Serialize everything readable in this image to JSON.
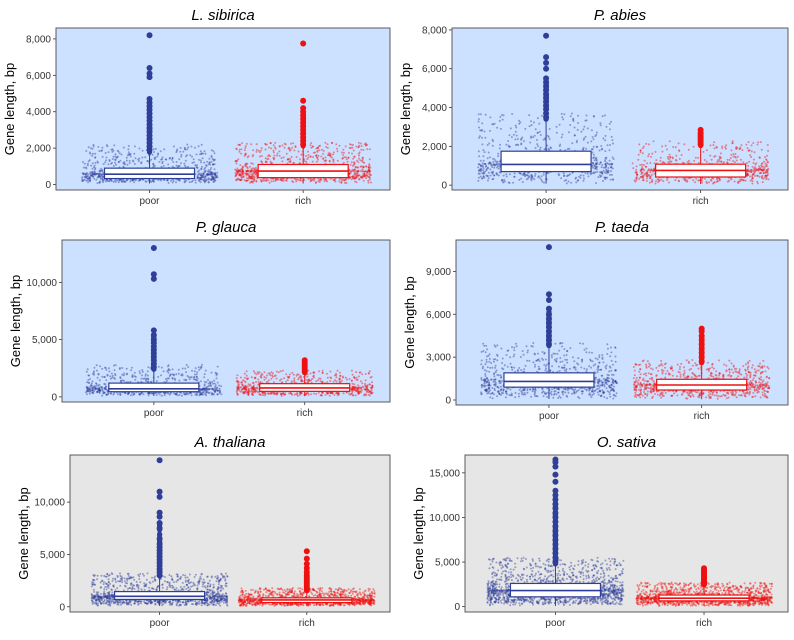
{
  "figure": {
    "background_pine": "#cce0ff",
    "background_other": "#e6e6e6",
    "poor_color": "#2e3f99",
    "rich_color": "#ee1111"
  },
  "chart_data": [
    {
      "type": "box",
      "title": "L. sibirica",
      "ylabel": "Gene length, bp",
      "categories": [
        "poor",
        "rich"
      ],
      "ylim": [
        -300,
        8600
      ],
      "yticks": [
        0,
        2000,
        4000,
        6000,
        8000
      ],
      "ytick_labels": [
        "0",
        "2,000",
        "4,000",
        "6,000",
        "8,000"
      ],
      "background": "pine",
      "series": [
        {
          "category": "poor",
          "q1": 330,
          "median": 570,
          "q3": 900,
          "whisker_low": 60,
          "whisker_high": 1750,
          "n_points": 900,
          "outlier_max": 2200,
          "outliers": [
            1900,
            2100,
            2300,
            2500,
            2700,
            2900,
            3100,
            3300,
            3500,
            3700,
            3900,
            4100,
            4300,
            4500,
            4700,
            5900,
            6100,
            6400,
            8200
          ]
        },
        {
          "category": "rich",
          "q1": 380,
          "median": 740,
          "q3": 1100,
          "whisker_low": 60,
          "whisker_high": 2100,
          "n_points": 1100,
          "outlier_max": 2300,
          "outliers": [
            2200,
            2400,
            2600,
            2800,
            3000,
            3200,
            3400,
            3600,
            3800,
            4000,
            4200,
            4600,
            7750
          ]
        }
      ]
    },
    {
      "type": "box",
      "title": "P. abies",
      "ylabel": "Gene length, bp",
      "categories": [
        "poor",
        "rich"
      ],
      "ylim": [
        -250,
        8100
      ],
      "yticks": [
        0,
        2000,
        4000,
        6000,
        8000
      ],
      "ytick_labels": [
        "0",
        "2,000",
        "4,000",
        "6,000",
        "8,000"
      ],
      "background": "pine",
      "series": [
        {
          "category": "poor",
          "q1": 700,
          "median": 1070,
          "q3": 1750,
          "whisker_low": 80,
          "whisker_high": 3400,
          "n_points": 800,
          "outlier_max": 3700,
          "outliers": [
            3500,
            3700,
            3900,
            4100,
            4300,
            4500,
            4700,
            4900,
            5100,
            5300,
            5500,
            6000,
            6300,
            6600,
            7700
          ]
        },
        {
          "category": "rich",
          "q1": 420,
          "median": 760,
          "q3": 1080,
          "whisker_low": 60,
          "whisker_high": 2050,
          "n_points": 700,
          "outlier_max": 2300,
          "outliers": [
            2100,
            2200,
            2300,
            2400,
            2500,
            2600,
            2700,
            2850
          ]
        }
      ]
    },
    {
      "type": "box",
      "title": "P. glauca",
      "ylabel": "Gene length, bp",
      "categories": [
        "poor",
        "rich"
      ],
      "ylim": [
        -450,
        13700
      ],
      "yticks": [
        0,
        5000,
        10000
      ],
      "ytick_labels": [
        "0",
        "5,000",
        "10,000"
      ],
      "background": "pine",
      "series": [
        {
          "category": "poor",
          "q1": 450,
          "median": 700,
          "q3": 1200,
          "whisker_low": 80,
          "whisker_high": 2400,
          "n_points": 800,
          "outlier_max": 2800,
          "outliers": [
            2600,
            2900,
            3200,
            3500,
            3800,
            4100,
            4400,
            4700,
            5000,
            5400,
            5800,
            10300,
            10700,
            13000
          ]
        },
        {
          "category": "rich",
          "q1": 480,
          "median": 780,
          "q3": 1150,
          "whisker_low": 60,
          "whisker_high": 2100,
          "n_points": 900,
          "outlier_max": 2300,
          "outliers": [
            2200,
            2400,
            2600,
            2800,
            3000,
            3200
          ]
        }
      ]
    },
    {
      "type": "box",
      "title": "P. taeda",
      "ylabel": "Gene length, bp",
      "categories": [
        "poor",
        "rich"
      ],
      "ylim": [
        -350,
        11200
      ],
      "yticks": [
        0,
        3000,
        6000,
        9000
      ],
      "ytick_labels": [
        "0",
        "3,000",
        "6,000",
        "9,000"
      ],
      "background": "pine",
      "series": [
        {
          "category": "poor",
          "q1": 900,
          "median": 1300,
          "q3": 1900,
          "whisker_low": 80,
          "whisker_high": 3800,
          "n_points": 900,
          "outlier_max": 4000,
          "outliers": [
            3900,
            4200,
            4500,
            4800,
            5100,
            5400,
            5700,
            6000,
            6400,
            7000,
            7400,
            10700
          ]
        },
        {
          "category": "rich",
          "q1": 700,
          "median": 1050,
          "q3": 1450,
          "whisker_low": 60,
          "whisker_high": 2600,
          "n_points": 900,
          "outlier_max": 2800,
          "outliers": [
            2700,
            3000,
            3300,
            3600,
            3900,
            4200,
            4500,
            4800,
            5000
          ]
        }
      ]
    },
    {
      "type": "box",
      "title": "A. thaliana",
      "ylabel": "Gene length, bp",
      "categories": [
        "poor",
        "rich"
      ],
      "ylim": [
        -500,
        14500
      ],
      "yticks": [
        0,
        5000,
        10000
      ],
      "ytick_labels": [
        "0",
        "5,000",
        "10,000"
      ],
      "background": "other",
      "series": [
        {
          "category": "poor",
          "q1": 700,
          "median": 1000,
          "q3": 1450,
          "whisker_low": 80,
          "whisker_high": 2900,
          "n_points": 1300,
          "outlier_max": 3200,
          "outliers": [
            3000,
            3300,
            3600,
            3900,
            4200,
            4500,
            4800,
            5100,
            5400,
            5700,
            6000,
            6500,
            7500,
            8000,
            8600,
            9000,
            10500,
            11000,
            14000
          ]
        },
        {
          "category": "rich",
          "q1": 400,
          "median": 650,
          "q3": 850,
          "whisker_low": 60,
          "whisker_high": 1500,
          "n_points": 1300,
          "outlier_max": 1800,
          "outliers": [
            1600,
            1800,
            2000,
            2200,
            2400,
            2600,
            2800,
            3000,
            3300,
            3700,
            4100,
            4600,
            5300
          ]
        }
      ]
    },
    {
      "type": "box",
      "title": "O. sativa",
      "ylabel": "Gene length, bp",
      "categories": [
        "poor",
        "rich"
      ],
      "ylim": [
        -600,
        17000
      ],
      "yticks": [
        0,
        5000,
        10000,
        15000
      ],
      "ytick_labels": [
        "0",
        "5,000",
        "10,000",
        "15,000"
      ],
      "background": "other",
      "series": [
        {
          "category": "poor",
          "q1": 1100,
          "median": 1800,
          "q3": 2600,
          "whisker_low": 80,
          "whisker_high": 4800,
          "n_points": 1600,
          "outlier_max": 5500,
          "outliers": [
            5000,
            5500,
            6000,
            6500,
            7000,
            7500,
            8000,
            8500,
            9000,
            9500,
            10000,
            10500,
            11000,
            11500,
            12000,
            12500,
            13000,
            14000,
            14800,
            15700,
            16200,
            16500
          ]
        },
        {
          "category": "rich",
          "q1": 650,
          "median": 950,
          "q3": 1300,
          "whisker_low": 60,
          "whisker_high": 2400,
          "n_points": 1400,
          "outlier_max": 2700,
          "outliers": [
            2500,
            2700,
            2900,
            3100,
            3300,
            3500,
            3700,
            3900,
            4100,
            4300
          ]
        }
      ]
    }
  ]
}
